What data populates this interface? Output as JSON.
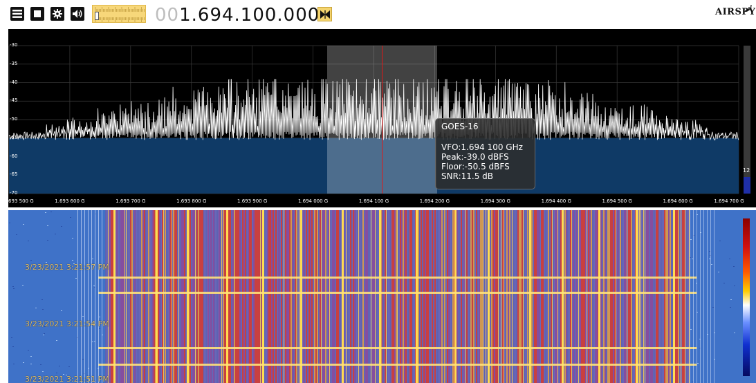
{
  "toolbar": {
    "menu_icon": "hamburger-menu-icon",
    "stop_icon": "stop-icon",
    "settings_icon": "gear-icon",
    "audio_icon": "speaker-icon",
    "frequency_leading": "00",
    "frequency": "1.694.100.000",
    "center_icon": "bowtie-center-icon",
    "logo": "AIRSPY"
  },
  "spectrum": {
    "y_ticks": [
      "-30",
      "-35",
      "-40",
      "-45",
      "-50",
      "-55",
      "-60",
      "-65",
      "-70"
    ],
    "x_ticks": [
      "1.693 500 G",
      "1.693 600 G",
      "1.693 700 G",
      "1.693 800 G",
      "1.693 900 G",
      "1.694 000 G",
      "1.694 100 G",
      "1.694 200 G",
      "1.694 300 G",
      "1.694 400 G",
      "1.694 500 G",
      "1.694 600 G",
      "1.694 700 G"
    ],
    "tooltip": {
      "name": "GOES-16",
      "vfo": "VFO:1.694 100 GHz",
      "peak": "Peak:-39.0 dBFS",
      "floor": "Floor:-50.5 dBFS",
      "snr": "SNR:11.5 dB"
    },
    "level_value": "12",
    "colors": {
      "fill": "#0f3a66",
      "trace": "#ffffff",
      "vfo_line": "#e01818",
      "grid": "#3a3a3a"
    }
  },
  "waterfall": {
    "timestamps": [
      "3/23/2021 3:21:57 PM",
      "3/23/2021 3:21:54 PM",
      "3/23/2021 3:21:51 PM"
    ]
  }
}
